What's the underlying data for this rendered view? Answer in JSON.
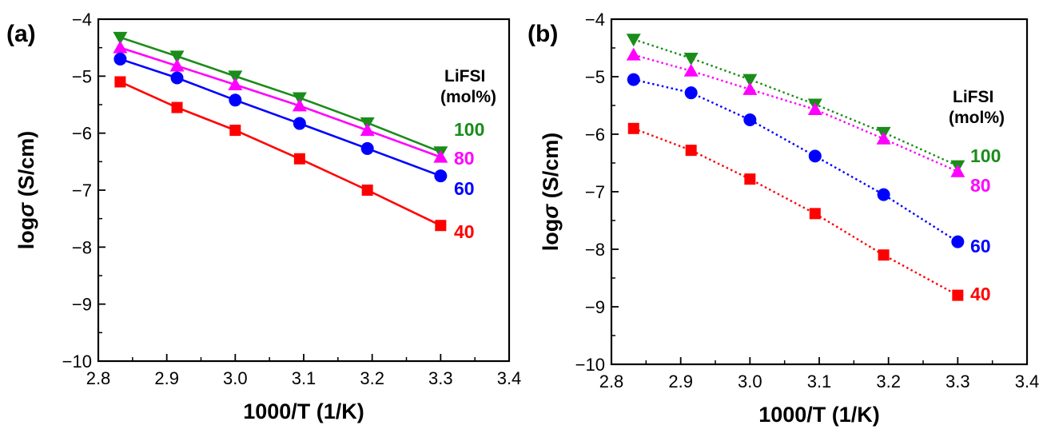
{
  "chart_data": [
    {
      "type": "line",
      "panel_label": "(a)",
      "xlabel": "1000/T (1/K)",
      "ylabel_main": "log",
      "ylabel_symbol": "σ",
      "ylabel_unit": " (S/cm)",
      "xlim": [
        2.8,
        3.4
      ],
      "ylim": [
        -10,
        -4
      ],
      "xticks": [
        "2.8",
        "2.9",
        "3.0",
        "3.1",
        "3.2",
        "3.3",
        "3.4"
      ],
      "yticks": [
        "−10",
        "−9",
        "−8",
        "−7",
        "−6",
        "−5",
        "−4"
      ],
      "line_style": "solid",
      "grid": false,
      "legend_title": [
        "LiFSI",
        "(mol%)"
      ],
      "x": [
        2.832,
        2.915,
        3.0,
        3.094,
        3.193,
        3.3
      ],
      "series": [
        {
          "name": "100",
          "color": "#1a8c1a",
          "marker": "triangle-down",
          "values": [
            -4.32,
            -4.65,
            -5.0,
            -5.38,
            -5.82,
            -6.33
          ]
        },
        {
          "name": "80",
          "color": "#ff00ff",
          "marker": "triangle-up",
          "values": [
            -4.5,
            -4.82,
            -5.15,
            -5.52,
            -5.95,
            -6.42
          ]
        },
        {
          "name": "60",
          "color": "#0000ff",
          "marker": "circle",
          "values": [
            -4.7,
            -5.03,
            -5.42,
            -5.83,
            -6.27,
            -6.75
          ]
        },
        {
          "name": "40",
          "color": "#ff0000",
          "marker": "square",
          "values": [
            -5.1,
            -5.55,
            -5.95,
            -6.45,
            -7.0,
            -7.62
          ]
        }
      ]
    },
    {
      "type": "line",
      "panel_label": "(b)",
      "xlabel": "1000/T (1/K)",
      "ylabel_main": "log",
      "ylabel_symbol": "σ",
      "ylabel_unit": " (S/cm)",
      "xlim": [
        2.8,
        3.4
      ],
      "ylim": [
        -10,
        -4
      ],
      "xticks": [
        "2.8",
        "2.9",
        "3.0",
        "3.1",
        "3.2",
        "3.3",
        "3.4"
      ],
      "yticks": [
        "−10",
        "−9",
        "−8",
        "−7",
        "−6",
        "−5",
        "−4"
      ],
      "line_style": "dotted",
      "grid": false,
      "legend_title": [
        "LiFSI",
        "(mol%)"
      ],
      "x": [
        2.832,
        2.915,
        3.0,
        3.094,
        3.193,
        3.3
      ],
      "series": [
        {
          "name": "100",
          "color": "#1a8c1a",
          "marker": "triangle-down",
          "values": [
            -4.35,
            -4.68,
            -5.05,
            -5.48,
            -5.97,
            -6.55
          ]
        },
        {
          "name": "80",
          "color": "#ff00ff",
          "marker": "triangle-up",
          "values": [
            -4.62,
            -4.9,
            -5.22,
            -5.57,
            -6.08,
            -6.65
          ]
        },
        {
          "name": "60",
          "color": "#0000ff",
          "marker": "circle",
          "values": [
            -5.05,
            -5.28,
            -5.75,
            -6.38,
            -7.05,
            -7.87
          ]
        },
        {
          "name": "40",
          "color": "#ff0000",
          "marker": "square",
          "values": [
            -5.9,
            -6.28,
            -6.78,
            -7.38,
            -8.1,
            -8.8
          ]
        }
      ]
    }
  ]
}
